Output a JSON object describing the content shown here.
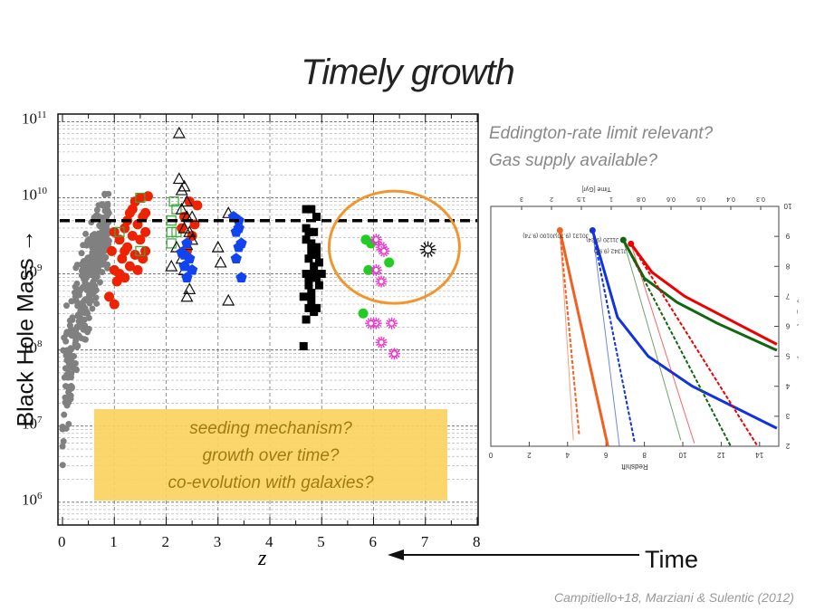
{
  "slide": {
    "title": "Timely growth",
    "questions": [
      "Eddington-rate limit relevant?",
      "Gas supply available?"
    ],
    "box_lines": [
      "seeding mechanism?",
      "growth over time?",
      "co-evolution with galaxies?"
    ],
    "y_axis_label": "Black Hole Mass →",
    "x_axis_label": "z",
    "time_label": "Time",
    "citation": "Campitiello+18, Marziani & Sulentic (2012)"
  },
  "chart_data": [
    {
      "type": "scatter",
      "xlabel": "z",
      "ylabel": "Black Hole Mass →",
      "xlim": [
        0,
        8
      ],
      "ylim": [
        5.7,
        11.1
      ],
      "y_scale": "log",
      "x_ticks": [
        "0",
        "1",
        "2",
        "3",
        "4",
        "5",
        "6",
        "7",
        "8"
      ],
      "y_ticks": [
        {
          "base": "10",
          "exp": "6",
          "v": 6
        },
        {
          "base": "10",
          "exp": "7",
          "v": 7
        },
        {
          "base": "10",
          "exp": "8",
          "v": 8
        },
        {
          "base": "10",
          "exp": "9",
          "v": 9
        },
        {
          "base": "10",
          "exp": "10",
          "v": 10
        },
        {
          "base": "10",
          "exp": "11",
          "v": 11
        }
      ],
      "reference_line_log_mass": 9.7,
      "highlight_ellipse": {
        "x": 6.4,
        "log_mass": 9.35,
        "color": "#f0962e"
      },
      "series": [
        {
          "marker": "circle",
          "color": "#808080",
          "z_range": [
            0.0,
            0.9
          ],
          "log_mass_range": [
            6.0,
            10.05
          ],
          "count": 360
        },
        {
          "marker": "circle",
          "color": "#ee2200",
          "points": [
            [
              0.9,
              8.7
            ],
            [
              0.95,
              9.3
            ],
            [
              1.0,
              9.05
            ],
            [
              1.0,
              9.55
            ],
            [
              1.05,
              8.9
            ],
            [
              1.1,
              9.45
            ],
            [
              1.15,
              9.2
            ],
            [
              1.2,
              8.95
            ],
            [
              1.2,
              9.6
            ],
            [
              1.25,
              9.35
            ],
            [
              1.3,
              9.1
            ],
            [
              1.3,
              9.8
            ],
            [
              1.35,
              9.5
            ],
            [
              1.4,
              9.25
            ],
            [
              1.4,
              9.95
            ],
            [
              1.45,
              9.65
            ],
            [
              1.5,
              9.45
            ],
            [
              1.5,
              10.0
            ],
            [
              1.55,
              9.2
            ],
            [
              1.6,
              9.55
            ],
            [
              1.6,
              9.8
            ],
            [
              1.65,
              10.02
            ],
            [
              1.0,
              8.6
            ],
            [
              1.1,
              9.0
            ],
            [
              1.25,
              9.7
            ],
            [
              1.45,
              9.05
            ],
            [
              1.55,
              9.75
            ],
            [
              1.35,
              9.85
            ],
            [
              1.2,
              9.3
            ],
            [
              1.6,
              9.3
            ]
          ]
        },
        {
          "marker": "square-open",
          "color": "#33aa33",
          "points": [
            [
              1.1,
              9.55
            ],
            [
              1.5,
              9.3
            ],
            [
              1.5,
              10.0
            ],
            [
              2.1,
              9.7
            ],
            [
              2.1,
              9.55
            ],
            [
              2.15,
              9.95
            ],
            [
              2.2,
              9.85
            ],
            [
              2.2,
              9.55
            ],
            [
              2.1,
              9.4
            ]
          ]
        },
        {
          "marker": "circle",
          "color": "#ee2200",
          "points": [
            [
              2.3,
              9.6
            ],
            [
              2.4,
              9.3
            ],
            [
              2.45,
              9.95
            ],
            [
              2.55,
              9.65
            ],
            [
              2.6,
              9.9
            ],
            [
              2.5,
              9.5
            ],
            [
              2.35,
              9.75
            ]
          ]
        },
        {
          "marker": "triangle-open",
          "color": "#111111",
          "points": [
            [
              2.25,
              10.85
            ],
            [
              2.25,
              10.25
            ],
            [
              2.3,
              10.1
            ],
            [
              2.35,
              10.15
            ],
            [
              2.4,
              9.95
            ],
            [
              2.4,
              9.75
            ],
            [
              2.3,
              9.85
            ],
            [
              2.35,
              9.6
            ],
            [
              2.45,
              9.55
            ],
            [
              2.4,
              9.38
            ],
            [
              2.3,
              9.2
            ],
            [
              2.35,
              9.05
            ],
            [
              2.45,
              8.8
            ],
            [
              2.1,
              9.1
            ],
            [
              2.2,
              9.35
            ],
            [
              2.5,
              9.75
            ],
            [
              2.5,
              9.45
            ],
            [
              3.0,
              9.35
            ],
            [
              3.05,
              9.15
            ],
            [
              3.2,
              9.8
            ],
            [
              3.2,
              8.65
            ],
            [
              2.4,
              8.7
            ]
          ]
        },
        {
          "marker": "pentagon",
          "color": "#1144ee",
          "points": [
            [
              2.3,
              9.28
            ],
            [
              2.35,
              9.1
            ],
            [
              2.4,
              8.95
            ],
            [
              2.45,
              9.2
            ],
            [
              2.5,
              9.05
            ],
            [
              2.4,
              9.4
            ],
            [
              2.35,
              9.25
            ],
            [
              3.3,
              9.75
            ],
            [
              3.35,
              9.55
            ],
            [
              3.4,
              9.35
            ],
            [
              3.35,
              9.2
            ],
            [
              3.45,
              8.95
            ],
            [
              3.4,
              9.6
            ],
            [
              3.4,
              9.7
            ],
            [
              3.45,
              9.4
            ]
          ]
        },
        {
          "marker": "square",
          "color": "#000000",
          "points": [
            [
              4.65,
              8.05
            ],
            [
              4.7,
              9.85
            ],
            [
              4.75,
              9.55
            ],
            [
              4.8,
              9.3
            ],
            [
              4.85,
              9.1
            ],
            [
              4.9,
              9.75
            ],
            [
              4.9,
              9.35
            ],
            [
              4.95,
              9.15
            ],
            [
              4.7,
              9.0
            ],
            [
              4.75,
              8.85
            ],
            [
              4.8,
              8.65
            ],
            [
              4.85,
              8.5
            ],
            [
              4.7,
              8.4
            ],
            [
              4.75,
              8.55
            ],
            [
              4.8,
              8.75
            ],
            [
              4.85,
              8.95
            ],
            [
              4.9,
              9.25
            ],
            [
              4.75,
              9.2
            ],
            [
              4.85,
              9.55
            ],
            [
              4.7,
              9.45
            ],
            [
              4.8,
              9.85
            ],
            [
              4.9,
              8.95
            ],
            [
              4.95,
              8.85
            ],
            [
              4.65,
              8.7
            ],
            [
              4.9,
              8.55
            ],
            [
              5.0,
              9.0
            ],
            [
              4.7,
              9.6
            ],
            [
              4.8,
              9.4
            ],
            [
              4.85,
              9.0
            ],
            [
              4.75,
              8.95
            ]
          ]
        },
        {
          "marker": "circle",
          "color": "#22cc22",
          "points": [
            [
              5.8,
              8.48
            ],
            [
              5.85,
              9.45
            ],
            [
              5.95,
              9.4
            ],
            [
              5.9,
              9.05
            ],
            [
              6.3,
              9.15
            ]
          ]
        },
        {
          "marker": "starburst",
          "color": "#ee33cc",
          "points": [
            [
              6.05,
              9.45
            ],
            [
              6.15,
              9.35
            ],
            [
              6.05,
              9.05
            ],
            [
              6.15,
              8.9
            ],
            [
              6.05,
              8.35
            ],
            [
              5.95,
              8.35
            ],
            [
              6.15,
              8.1
            ],
            [
              6.4,
              7.95
            ],
            [
              6.35,
              8.35
            ],
            [
              6.2,
              9.3
            ]
          ]
        },
        {
          "marker": "starburst",
          "color": "#111111",
          "points": [
            [
              7.05,
              9.32
            ]
          ]
        }
      ]
    },
    {
      "type": "line",
      "xlabel": "Redshift",
      "x2label": "Time [Gyr]",
      "ylabel": "log M_BH [solar mass]",
      "xlim": [
        0,
        15
      ],
      "ylim": [
        2,
        10
      ],
      "x_reversed": true,
      "x_ticks": [
        "0",
        "2",
        "4",
        "6",
        "8",
        "10",
        "12",
        "14"
      ],
      "y_ticks": [
        "2",
        "3",
        "4",
        "5",
        "6",
        "7",
        "8",
        "9",
        "10"
      ],
      "top_ticks": [
        "0.3",
        "0.4",
        "0.5",
        "0.6",
        "0.8",
        "1",
        "1.5",
        "2",
        "3"
      ],
      "series": [
        {
          "name": "J0100 (9.74)",
          "color": "#f06020",
          "seed": [
            3.6,
            9.2
          ],
          "curves": [
            [
              [
                3.6,
                9.2
              ],
              [
                6.1,
                2.0
              ]
            ],
            [
              [
                3.6,
                9.2
              ],
              [
                4.6,
                2.4
              ]
            ],
            [
              [
                3.6,
                9.2
              ],
              [
                4.3,
                2.2
              ]
            ]
          ]
        },
        {
          "name": "J0131 (9.70)",
          "color": "#1133dd",
          "seed": [
            5.3,
            9.2
          ],
          "curves": [
            [
              [
                5.3,
                9.2
              ],
              [
                6.6,
                6.3
              ],
              [
                8.2,
                5.0
              ],
              [
                10.5,
                4.0
              ],
              [
                14.9,
                2.6
              ]
            ],
            [
              [
                5.3,
                9.2
              ],
              [
                7.5,
                2.1
              ]
            ],
            [
              [
                5.3,
                9.2
              ],
              [
                6.7,
                2.0
              ]
            ]
          ]
        },
        {
          "name": "J1120 (9.24)",
          "color": "#116611",
          "seed": [
            6.9,
            8.88
          ],
          "curves": [
            [
              [
                6.9,
                8.88
              ],
              [
                8.0,
                7.6
              ],
              [
                9.7,
                6.8
              ],
              [
                11.8,
                6.1
              ],
              [
                14.9,
                5.2
              ]
            ],
            [
              [
                6.9,
                8.88
              ],
              [
                12.5,
                2.0
              ]
            ],
            [
              [
                6.9,
                8.88
              ],
              [
                9.9,
                2.2
              ]
            ]
          ]
        },
        {
          "name": "J1342 (9.98)",
          "color": "#ee0000",
          "seed": [
            7.3,
            8.75
          ],
          "curves": [
            [
              [
                7.3,
                8.75
              ],
              [
                8.4,
                7.8
              ],
              [
                10.1,
                7.0
              ],
              [
                12.2,
                6.3
              ],
              [
                14.9,
                5.4
              ]
            ],
            [
              [
                7.3,
                8.75
              ],
              [
                13.9,
                2.0
              ]
            ],
            [
              [
                7.3,
                8.75
              ],
              [
                10.6,
                2.1
              ]
            ]
          ]
        }
      ]
    }
  ]
}
